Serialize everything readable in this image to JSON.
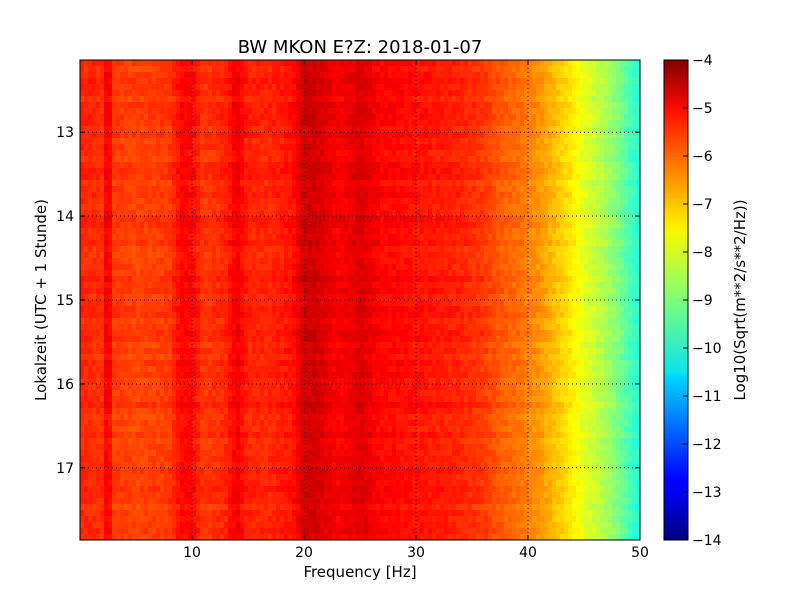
{
  "chart_data": {
    "type": "heatmap",
    "title": "BW MKON E?Z: 2018-01-07",
    "xlabel": "Frequency [Hz]",
    "ylabel": "Lokalzeit (UTC + 1 Stunde)",
    "xlim": [
      0,
      50
    ],
    "ylim": [
      12.14,
      17.86
    ],
    "y_inverted": true,
    "grid": true,
    "grid_style": "dotted",
    "colormap": "jet",
    "x_ticks": [
      10,
      20,
      30,
      40,
      50
    ],
    "y_ticks": [
      13,
      14,
      15,
      16,
      17
    ],
    "colorbar": {
      "label": "Log10(Sqrt(m**2/s**2/Hz))",
      "range": [
        -14,
        -4
      ],
      "ticks": [
        -4,
        -5,
        -6,
        -7,
        -8,
        -9,
        -10,
        -11,
        -12,
        -13,
        -14
      ]
    },
    "frequency_profile": {
      "frequency_hz": [
        0,
        2,
        2.5,
        3,
        5,
        8,
        9,
        10,
        11,
        13,
        14,
        15,
        17,
        19,
        20,
        21,
        22,
        23,
        24,
        25,
        26,
        27,
        28,
        30,
        32,
        34,
        36,
        37,
        38,
        39,
        40,
        41,
        42,
        43,
        44,
        45,
        46,
        47,
        48,
        49,
        50
      ],
      "log10_amplitude": [
        -5.6,
        -5.7,
        -5.0,
        -5.8,
        -5.9,
        -5.8,
        -5.3,
        -5.3,
        -5.8,
        -5.6,
        -5.1,
        -5.6,
        -5.6,
        -5.4,
        -4.8,
        -4.8,
        -5.0,
        -5.2,
        -5.1,
        -4.9,
        -5.1,
        -5.3,
        -5.3,
        -5.4,
        -5.5,
        -5.6,
        -5.8,
        -6.0,
        -6.2,
        -6.3,
        -6.5,
        -6.7,
        -7.0,
        -7.3,
        -7.6,
        -8.0,
        -8.3,
        -8.6,
        -9.0,
        -9.5,
        -9.9
      ]
    }
  }
}
